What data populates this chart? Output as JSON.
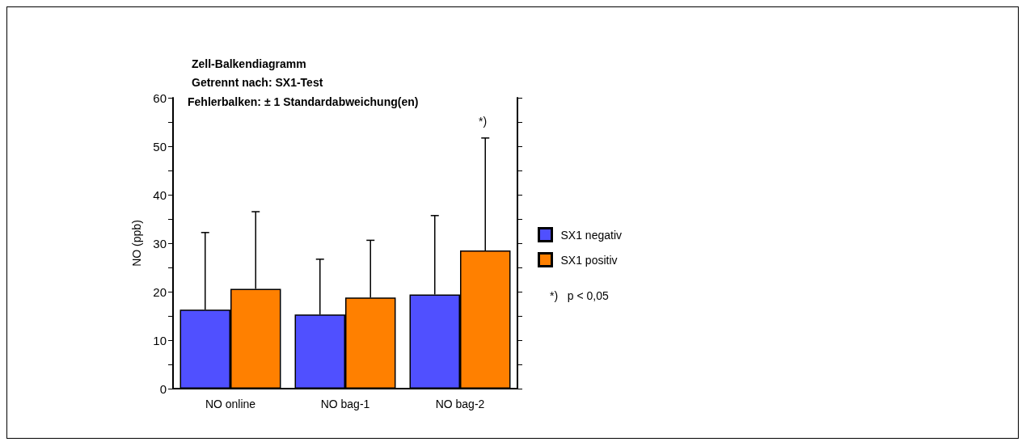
{
  "chart_data": {
    "type": "bar",
    "title": "Zell-Balkendiagramm",
    "subtitle": "Getrennt nach: SX1-Test",
    "ylabel": "NO (ppb)",
    "categories": [
      "NO online",
      "NO bag-1",
      "NO bag-2"
    ],
    "series": [
      {
        "name": "SX1 negativ",
        "color": "#5050ff",
        "values": [
          16.3,
          15.3,
          19.4
        ],
        "errors": [
          [
            16.3,
            32.2
          ],
          [
            15.3,
            26.7
          ],
          [
            19.4,
            35.7
          ]
        ]
      },
      {
        "name": "SX1 positiv",
        "color": "#ff8000",
        "values": [
          20.6,
          18.8,
          28.5
        ],
        "errors": [
          [
            20.6,
            36.5
          ],
          [
            18.8,
            30.6
          ],
          [
            28.5,
            51.7
          ]
        ]
      }
    ],
    "ylim": [
      0,
      60
    ],
    "yticks": [
      0,
      {
        "value": 5,
        "label": null
      },
      10,
      {
        "value": 15,
        "label": null
      },
      20,
      {
        "value": 25,
        "label": null
      },
      30,
      {
        "value": 35,
        "label": null
      },
      40,
      {
        "value": 45,
        "label": null
      },
      50,
      {
        "value": 55,
        "label": null
      },
      60
    ],
    "annotations": [
      "Fehlerbalken: ± 1 Standardabweichung(en)",
      "*)",
      "*)   p < 0,05"
    ],
    "legend": "right",
    "grid": false
  }
}
